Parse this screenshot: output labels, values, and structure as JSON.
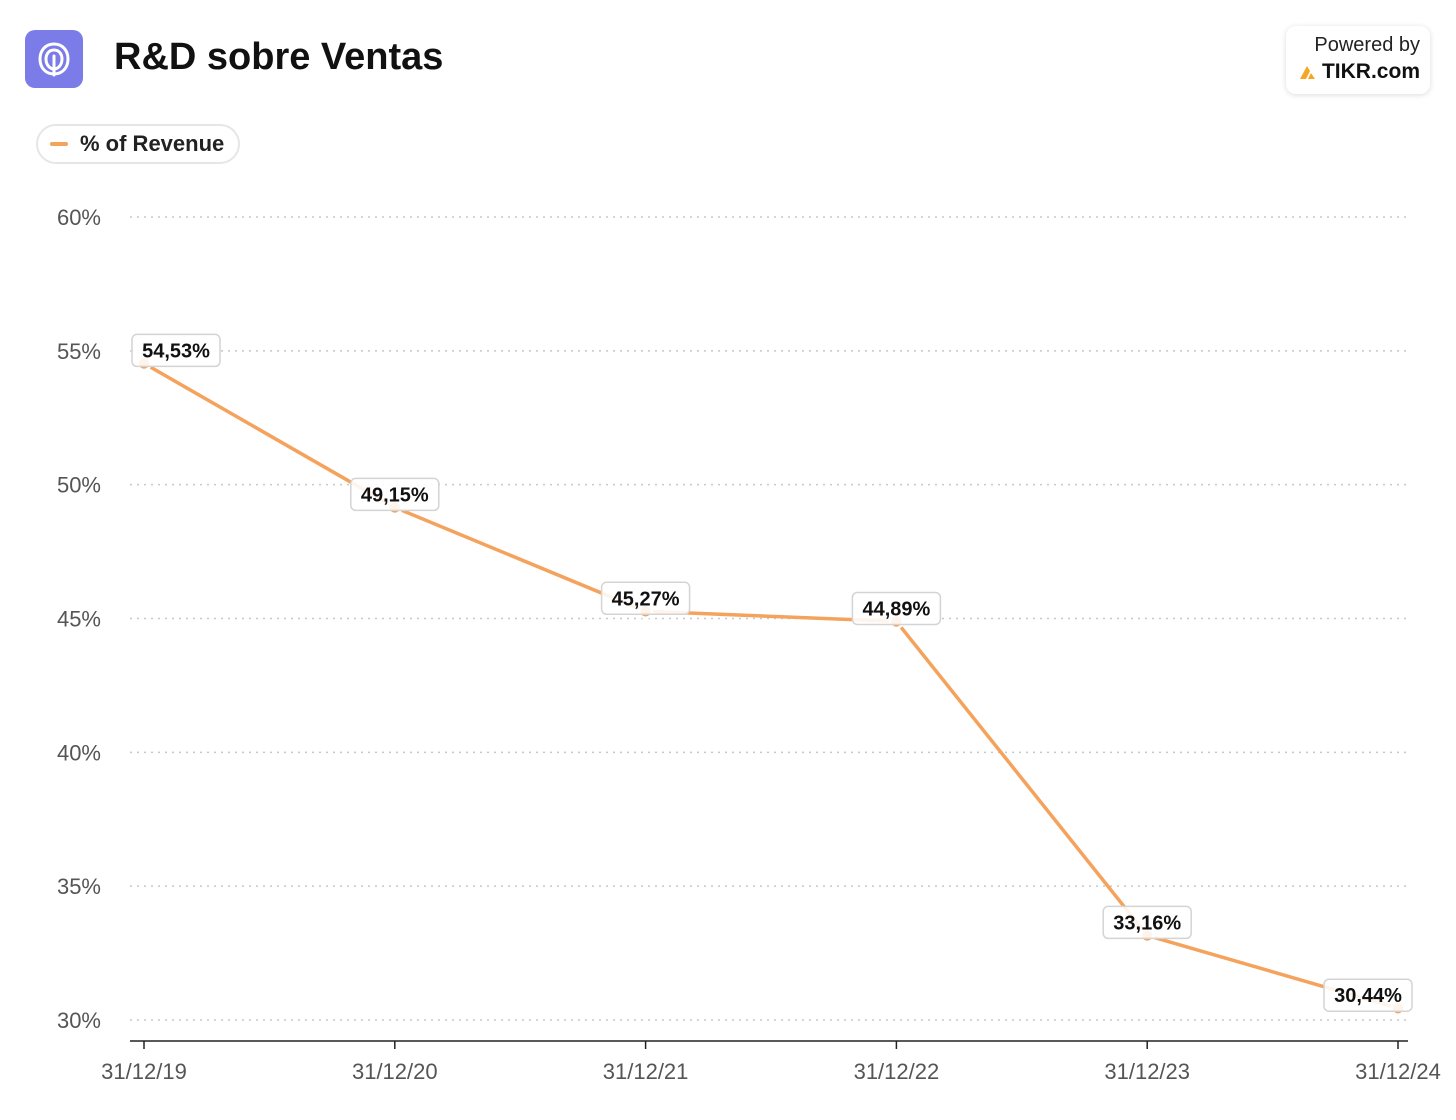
{
  "header": {
    "title": "R&D sobre Ventas",
    "logo_icon": "life360-logo-icon"
  },
  "badge": {
    "powered_label": "Powered by",
    "brand": "TIKR.com",
    "brand_icon": "tikr-logo-icon"
  },
  "legend": {
    "label": "% of Revenue",
    "color": "#f4a25c"
  },
  "chart_data": {
    "type": "line",
    "title": "R&D sobre Ventas",
    "xlabel": "",
    "ylabel": "",
    "categories": [
      "31/12/19",
      "31/12/20",
      "31/12/21",
      "31/12/22",
      "31/12/23",
      "31/12/24"
    ],
    "series": [
      {
        "name": "% of Revenue",
        "color": "#f4a25c",
        "values": [
          54.53,
          49.15,
          45.27,
          44.89,
          33.16,
          30.44
        ],
        "labels": [
          "54,53%",
          "49,15%",
          "45,27%",
          "44,89%",
          "33,16%",
          "30,44%"
        ]
      }
    ],
    "ylim": [
      30,
      60
    ],
    "yticks": [
      30,
      35,
      40,
      45,
      50,
      55,
      60
    ],
    "ytick_labels": [
      "30%",
      "35%",
      "40%",
      "45%",
      "50%",
      "55%",
      "60%"
    ],
    "grid": true,
    "legend_position": "top-left"
  }
}
